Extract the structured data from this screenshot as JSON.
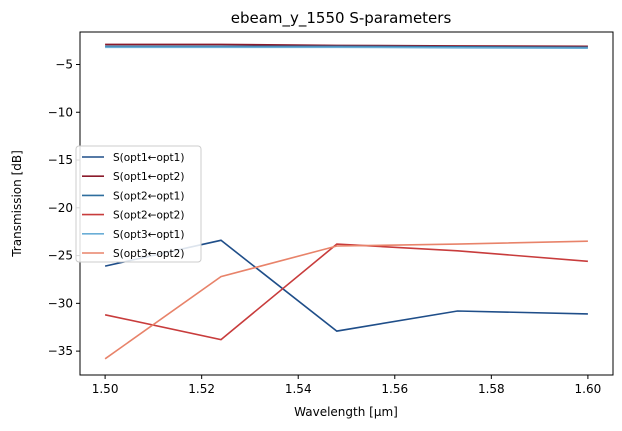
{
  "chart_data": {
    "type": "line",
    "title": "ebeam_y_1550 S-parameters",
    "xlabel": "Wavelength [µm]",
    "ylabel": "Transmission [dB]",
    "xlim": [
      1.4948,
      1.6052
    ],
    "ylim": [
      -37.5,
      -1.6
    ],
    "xticks": [
      1.5,
      1.52,
      1.54,
      1.56,
      1.58,
      1.6
    ],
    "xtick_labels": [
      "1.50",
      "1.52",
      "1.54",
      "1.56",
      "1.58",
      "1.60"
    ],
    "yticks": [
      -5,
      -10,
      -15,
      -20,
      -25,
      -30,
      -35
    ],
    "ytick_labels": [
      "−5",
      "−10",
      "−15",
      "−20",
      "−25",
      "−30",
      "−35"
    ],
    "grid": false,
    "legend_position": "center-left",
    "x": [
      1.5,
      1.524,
      1.548,
      1.573,
      1.6
    ],
    "series": [
      {
        "name": "S(opt1←opt1)",
        "color": "#1f4e89",
        "values": [
          -26.1,
          -23.4,
          -32.9,
          -30.8,
          -31.1
        ]
      },
      {
        "name": "S(opt1←opt2)",
        "color": "#8b1a2b",
        "values": [
          -2.9,
          -2.9,
          -3.0,
          -3.05,
          -3.1
        ]
      },
      {
        "name": "S(opt2←opt1)",
        "color": "#2e6e9e",
        "values": [
          -3.1,
          -3.1,
          -3.1,
          -3.15,
          -3.2
        ]
      },
      {
        "name": "S(opt2←opt2)",
        "color": "#c83c3c",
        "values": [
          -31.2,
          -33.8,
          -23.8,
          -24.5,
          -25.6
        ]
      },
      {
        "name": "S(opt3←opt1)",
        "color": "#6aaed6",
        "values": [
          -3.2,
          -3.2,
          -3.2,
          -3.25,
          -3.3
        ]
      },
      {
        "name": "S(opt3←opt2)",
        "color": "#e8836a",
        "values": [
          -35.8,
          -27.2,
          -24.0,
          -23.8,
          -23.5
        ]
      }
    ]
  }
}
